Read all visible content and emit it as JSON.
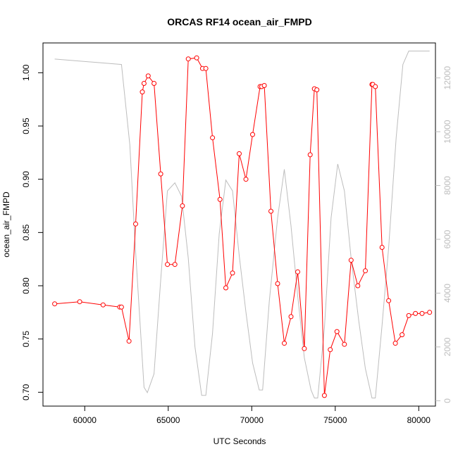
{
  "chart_data": {
    "type": "line",
    "title": "ORCAS RF14 ocean_air_FMPD",
    "xlabel": "UTC Seconds",
    "ylabel": "ocean_air_FMPD",
    "xlim": [
      57500,
      81000
    ],
    "ylim": [
      0.687,
      1.028
    ],
    "y2lim": [
      -200,
      13300
    ],
    "x_ticks": [
      60000,
      65000,
      70000,
      75000,
      80000
    ],
    "y_ticks": [
      0.7,
      0.75,
      0.8,
      0.85,
      0.9,
      0.95,
      1.0
    ],
    "y_tick_labels": [
      "0.70",
      "0.75",
      "0.80",
      "0.85",
      "0.90",
      "0.95",
      "1.00"
    ],
    "y2_ticks": [
      0,
      2000,
      4000,
      6000,
      8000,
      10000,
      12000
    ],
    "grid": false,
    "series": [
      {
        "color": "#ff0000",
        "marker": "open-circle",
        "axis": "left",
        "x": [
          58200,
          59700,
          61100,
          62100,
          62200,
          62650,
          63050,
          63450,
          63550,
          63800,
          64150,
          64550,
          64950,
          65400,
          65850,
          66200,
          66700,
          67050,
          67250,
          67650,
          68100,
          68450,
          68850,
          69250,
          69650,
          70050,
          70500,
          70600,
          70750,
          71150,
          71550,
          71950,
          72350,
          72750,
          73150,
          73500,
          73750,
          73900,
          74350,
          74700,
          75100,
          75550,
          75950,
          76350,
          76800,
          77200,
          77250,
          77400,
          77800,
          78200,
          78600,
          79000,
          79400,
          79800,
          80200,
          80650
        ],
        "values": [
          0.783,
          0.785,
          0.782,
          0.78,
          0.78,
          0.748,
          0.858,
          0.982,
          0.99,
          0.997,
          0.99,
          0.905,
          0.82,
          0.82,
          0.875,
          1.013,
          1.014,
          1.004,
          1.004,
          0.939,
          0.881,
          0.798,
          0.812,
          0.924,
          0.9,
          0.942,
          0.987,
          0.987,
          0.988,
          0.87,
          0.802,
          0.746,
          0.771,
          0.813,
          0.741,
          0.923,
          0.985,
          0.984,
          0.697,
          0.74,
          0.757,
          0.745,
          0.824,
          0.8,
          0.814,
          0.989,
          0.989,
          0.987,
          0.836,
          0.786,
          0.746,
          0.754,
          0.772,
          0.774,
          0.774,
          0.775
        ]
      },
      {
        "color": "#bdbdbd",
        "marker": "none",
        "axis": "right",
        "x": [
          58200,
          62200,
          62700,
          63000,
          63300,
          63550,
          63750,
          64150,
          64550,
          64950,
          65400,
          65800,
          66200,
          66600,
          67000,
          67250,
          67650,
          68050,
          68450,
          68850,
          69250,
          69650,
          70050,
          70450,
          70650,
          71050,
          71550,
          71950,
          72350,
          72750,
          73150,
          73550,
          73750,
          73950,
          74350,
          74750,
          75150,
          75550,
          75950,
          76400,
          76800,
          77200,
          77400,
          77800,
          78200,
          78650,
          79050,
          79400,
          80650
        ],
        "values": [
          12700,
          12500,
          9500,
          6000,
          3000,
          500,
          300,
          1000,
          4500,
          7800,
          8100,
          7600,
          5300,
          2000,
          200,
          200,
          2500,
          6200,
          8200,
          7800,
          5400,
          3300,
          1400,
          400,
          400,
          3700,
          6800,
          8600,
          6500,
          3900,
          1600,
          400,
          100,
          100,
          2700,
          6800,
          8800,
          7800,
          5300,
          3000,
          1200,
          100,
          100,
          2800,
          5700,
          9800,
          12500,
          13000,
          13000
        ]
      }
    ]
  }
}
